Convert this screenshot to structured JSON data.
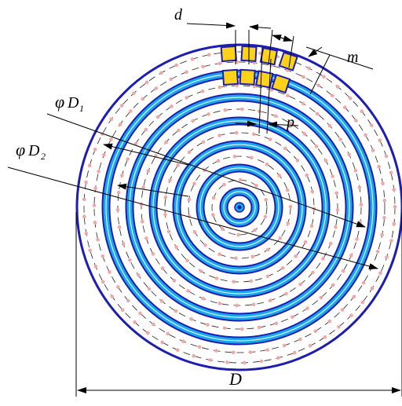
{
  "diagram": {
    "labels": {
      "d": "d",
      "m": "m",
      "p": "p",
      "D1_symbol": "φ",
      "D1_letter": "D",
      "D1_sub": "1",
      "D2_symbol": "φ",
      "D2_letter": "D",
      "D2_sub": "2",
      "D": "D"
    },
    "colors": {
      "outline": "#1d1db0",
      "channel": "#1aa7ea",
      "channel_inner": "#ffffff",
      "dots": "#f1a7a7",
      "dash": "#222222",
      "cells": "#ffd21a",
      "ink": "#000000"
    },
    "icons": {
      "center": "target-dot-icon"
    }
  }
}
